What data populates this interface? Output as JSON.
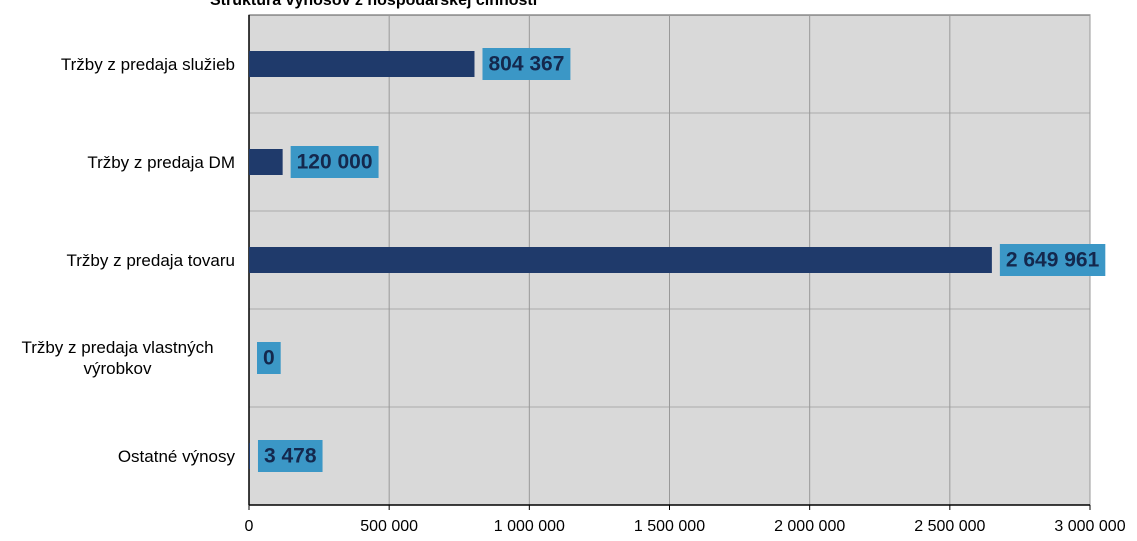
{
  "chart_data": {
    "type": "bar",
    "orientation": "horizontal",
    "title": "Štruktúra výnosov z hospodárskej činnosti",
    "categories": [
      "Tržby z predaja služieb",
      "Tržby z predaja DM",
      "Tržby z predaja tovaru",
      "Tržby z predaja vlastných výrobkov",
      "Ostatné výnosy"
    ],
    "values": [
      804367,
      120000,
      2649961,
      0,
      3478
    ],
    "value_labels": [
      "804 367",
      "120 000",
      "2 649 961",
      "0",
      "3 478"
    ],
    "color": "#1f3a6b",
    "label_color": "#3b97c6",
    "xlim": [
      0,
      3000000
    ],
    "xticks": [
      0,
      {
        "value": 500000,
        "label": "500 000"
      },
      {
        "value": 1000000,
        "label": "1 000 000"
      },
      {
        "value": 1500000,
        "label": "1 500 000"
      },
      {
        "value": 2000000,
        "label": "2 000 000"
      },
      {
        "value": 2500000,
        "label": "2 500 000"
      },
      {
        "value": 3000000,
        "label": "3 000 000"
      }
    ],
    "grid": true
  }
}
